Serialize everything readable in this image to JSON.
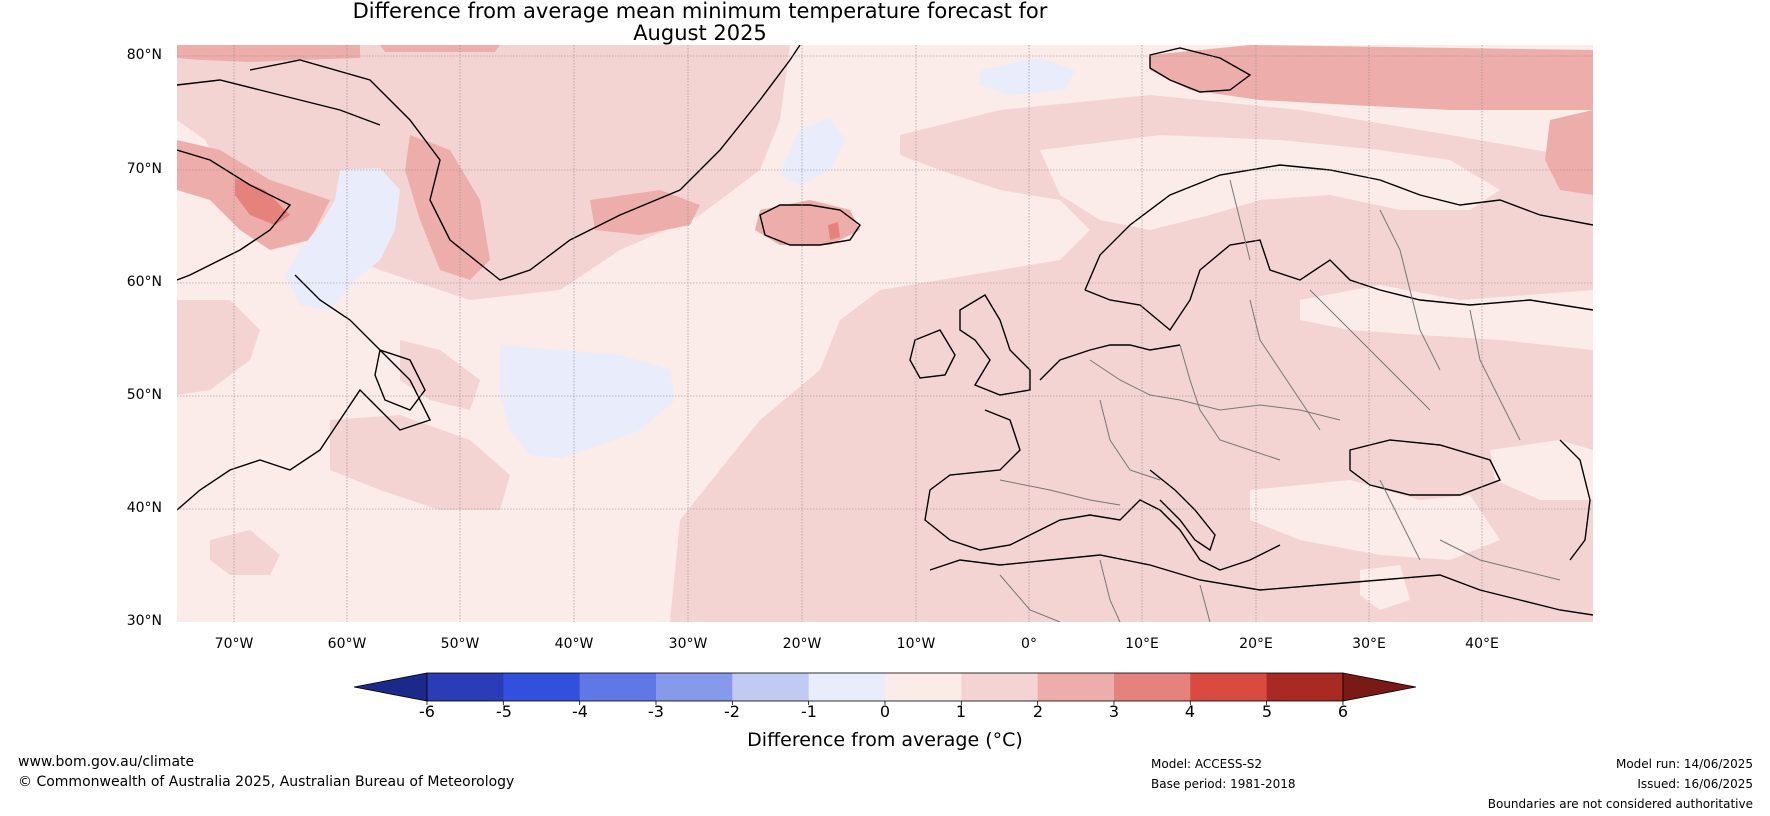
{
  "title": {
    "line1": "Difference from average mean minimum temperature forecast for",
    "line2": "August 2025"
  },
  "map": {
    "region": "North Atlantic and Europe",
    "lat_labels": [
      "80°N",
      "70°N",
      "60°N",
      "50°N",
      "40°N",
      "30°N"
    ],
    "lon_labels": [
      "70°W",
      "60°W",
      "50°W",
      "40°W",
      "30°W",
      "20°W",
      "10°W",
      "0°",
      "10°E",
      "20°E",
      "30°E",
      "40°E"
    ],
    "extent": {
      "lon": [
        -75,
        50
      ],
      "lat": [
        30,
        81
      ]
    }
  },
  "colorbar": {
    "ticks": [
      "-6",
      "-5",
      "-4",
      "-3",
      "-2",
      "-1",
      "0",
      "1",
      "2",
      "3",
      "4",
      "5",
      "6"
    ],
    "colors": [
      "#1b2a8a",
      "#2a3db6",
      "#3050dd",
      "#5f78e6",
      "#8699ea",
      "#c1caf3",
      "#e8ecfb",
      "#fbebe9",
      "#f4d4d2",
      "#edaeab",
      "#e5827c",
      "#d94a40",
      "#a92a22",
      "#7a1a16"
    ],
    "label": "Difference from average (°C)"
  },
  "footer": {
    "website": "www.bom.gov.au/climate",
    "copyright": "© Commonwealth of Australia 2025, Australian Bureau of Meteorology",
    "model": "Model: ACCESS-S2",
    "base_period": "Base period: 1981-2018",
    "model_run": "Model run: 14/06/2025",
    "issued": "Issued: 16/06/2025",
    "disclaimer": "Boundaries are not considered authoritative"
  }
}
